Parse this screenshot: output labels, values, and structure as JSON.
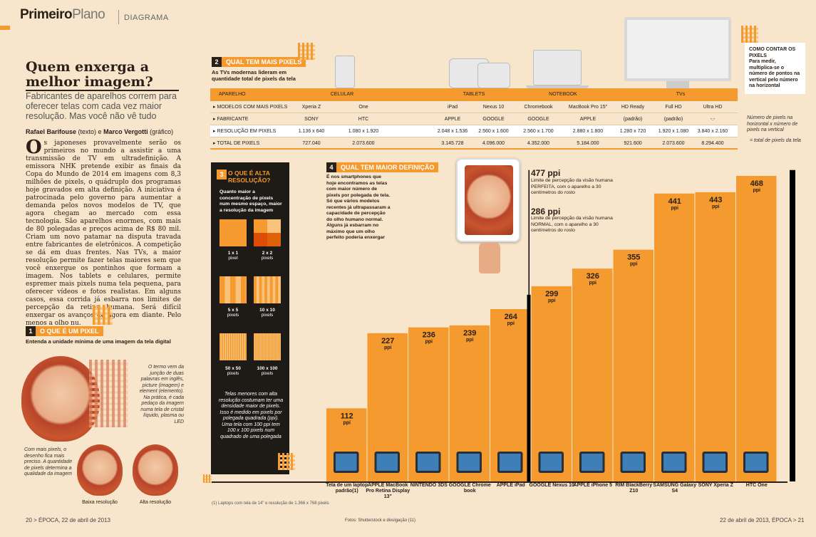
{
  "header": {
    "brand_bold": "Primeiro",
    "brand_light": "Plano",
    "section": "DIAGRAMA"
  },
  "article": {
    "headline": "Quem enxerga a melhor imagem?",
    "deck": "Fabricantes de aparelhos correm para oferecer telas com cada vez maior resolução. Mas você não vê tudo",
    "byline_name1": "Rafael Barifouse",
    "byline_role1": "(texto) e",
    "byline_name2": "Marco Vergotti",
    "byline_role2": "(gráfico)",
    "dropcap": "O",
    "body": "s japoneses provavelmente serão os primeiros no mundo a assistir a uma transmissão de TV em ultradefinição. A emissora NHK pretende exibir as finais da Copa do Mundo de 2014 em imagens com 8,3 milhões de pixels, o quádruplo dos programas hoje gravados em alta definição. A iniciativa é patrocinada pelo governo para aumentar a demanda pelos novos modelos de TV, que agora chegam ao mercado com essa tecnologia. São aparelhos enormes, com mais de 80 polegadas e preços acima de R$ 80 mil. Criam um novo patamar na disputa travada entre fabricantes de eletrônicos. A competição se dá em duas frentes. Nas TVs, a maior resolução permite fazer telas maiores sem que você enxergue os pontinhos que formam a imagem. Nos tablets e celulares, permite espremer mais pixels numa tela pequena, para oferecer vídeos e fotos realistas. Em alguns casos, essa corrida já esbarra nos limites de percepção da retina humana. Será difícil enxergar os avanços de agora em diante. Pelo menos a olho nu."
  },
  "section1": {
    "num": "1",
    "title": "O QUE É UM PIXEL",
    "subtitle": "Entenda a unidade mínima de uma imagem da tela digital",
    "note": "O termo vem da junção de duas palavras em inglês, picture (imagem) e element (elemento). Na prática, é cada pedaço da imagem numa tela de cristal líquido, plasma ou LED",
    "note_more": "Com mais pixels, o desenho fica mais preciso. A quantidade de pixels determina a qualidade da imagem",
    "low_res": "Baixa resolução",
    "high_res": "Alta resolução"
  },
  "section2": {
    "num": "2",
    "title": "QUAL TEM MAIS PIXELS",
    "subtitle": "As TVs modernas lideram em quantidade total de pixels da tela",
    "header": {
      "aparelho": "APARELHO",
      "celular": "CELULAR",
      "tablets": "TABLETS",
      "notebook": "NOTEBOOK",
      "tvs": "TVs"
    },
    "row_labels": [
      "MODELOS COM MAIS PIXELS",
      "FABRICANTE",
      "RESOLUÇÃO EM PIXELS",
      "TOTAL DE PIXELS"
    ],
    "columns": [
      {
        "modelo": "Xperia Z",
        "fabricante": "SONY",
        "resolucao": "1.136 x 640",
        "total": "727.040"
      },
      {
        "modelo": "One",
        "fabricante": "HTC",
        "resolucao": "1.080 x 1.920",
        "total": "2.073.600"
      },
      {
        "modelo": "iPad",
        "fabricante": "APPLE",
        "resolucao": "2.048 x 1.536",
        "total": "3.145.728"
      },
      {
        "modelo": "Nexus 10",
        "fabricante": "GOOGLE",
        "resolucao": "2.560 x 1.600",
        "total": "4.096.000"
      },
      {
        "modelo": "Chromebook",
        "fabricante": "GOOGLE",
        "resolucao": "2.560 x 1.700",
        "total": "4.352.000"
      },
      {
        "modelo": "MacBook Pro 15\"",
        "fabricante": "APPLE",
        "resolucao": "2.880 x 1.800",
        "total": "5.184.000"
      },
      {
        "modelo": "HD Ready",
        "fabricante": "(padrão)",
        "resolucao": "1.280 x 720",
        "total": "921.600"
      },
      {
        "modelo": "Full HD",
        "fabricante": "(padrão)",
        "resolucao": "1.920 x 1.080",
        "total": "2.073.600"
      },
      {
        "modelo": "Ultra HD",
        "fabricante": "-.-",
        "resolucao": "3.840 x 2.160",
        "total": "8.294.400"
      }
    ],
    "side_note_title": "COMO CONTAR OS PIXELS",
    "side_note_body": "Para medir, multiplica-se o número de pontos na vertical pelo número na horizontal",
    "side_note_h": "Número de pixels na horizontal x número de pixels na vertical",
    "side_note_total": "= total de pixels da tela"
  },
  "section3": {
    "num": "3",
    "title": "O QUE É ALTA RESOLUÇÃO?",
    "intro": "Quanto maior a concentração de pixels num mesmo espaço, maior a resolução da imagem",
    "grids": [
      {
        "label": "1 x 1",
        "sub": "pixel"
      },
      {
        "label": "2 x 2",
        "sub": "pixels"
      },
      {
        "label": "5 x 5",
        "sub": "pixels"
      },
      {
        "label": "10 x 10",
        "sub": "pixels"
      },
      {
        "label": "50 x 50",
        "sub": "pixels"
      },
      {
        "label": "100 x 100",
        "sub": "pixels"
      }
    ],
    "footer": "Telas menores com alta resolução costumam ter uma densidade maior de pixels. Isso é medido em pixels por polegada quadrada (ppi). Uma tela com 100 ppi tem 100 x 100 pixels num quadrado de uma polegada"
  },
  "section4": {
    "num": "4",
    "title": "QUAL TEM MAIOR DEFINIÇÃO",
    "intro": "É nos smartphones que hoje encontramos as telas com maior número de pixels por polegada de tela. Só que vários modelos recentes já ultrapassaram a capacidade de percepção do olho humano normal. Alguns já esbarram no máximo que um olho perfeito poderia enxergar",
    "perfect_value": "477 ppi",
    "perfect_text": "Limite de percepção da visão humana PERFEITA, com o aparelho a 30 centímetros do rosto",
    "normal_value": "286 ppi",
    "normal_text": "Limite de percepção da visão humana NORMAL, com o aparelho a 30 centímetros do rosto",
    "footnote": "(1) Laptops com tela de 14\" e resolução de 1.366 x 768 pixels"
  },
  "chart_data": {
    "type": "bar",
    "categories": [
      "Tela de um laptop padrão(1)",
      "APPLE MacBook Pro Retina Display 13\"",
      "NINTENDO 3DS",
      "GOOGLE Chrome book",
      "APPLE iPad",
      "GOOGLE Nexus 10",
      "APPLE iPhone 5",
      "RIM BlackBerry Z10",
      "SAMSUNG Galaxy S4",
      "SONY Xperia Z",
      "HTC One"
    ],
    "values": [
      112,
      227,
      236,
      239,
      264,
      299,
      326,
      355,
      441,
      443,
      468
    ],
    "unit": "ppi",
    "thresholds": [
      {
        "value": 286,
        "label": "286 ppi"
      },
      {
        "value": 477,
        "label": "477 ppi"
      }
    ],
    "bar_color": "#f59a2e",
    "ylim": [
      0,
      500
    ]
  },
  "footer": {
    "left": "20 > ÉPOCA, 22 de abril de 2013",
    "credit": "Fotos: Shutterstock e divulgação (11)",
    "right": "22 de abril de 2013, ÉPOCA > 21"
  }
}
